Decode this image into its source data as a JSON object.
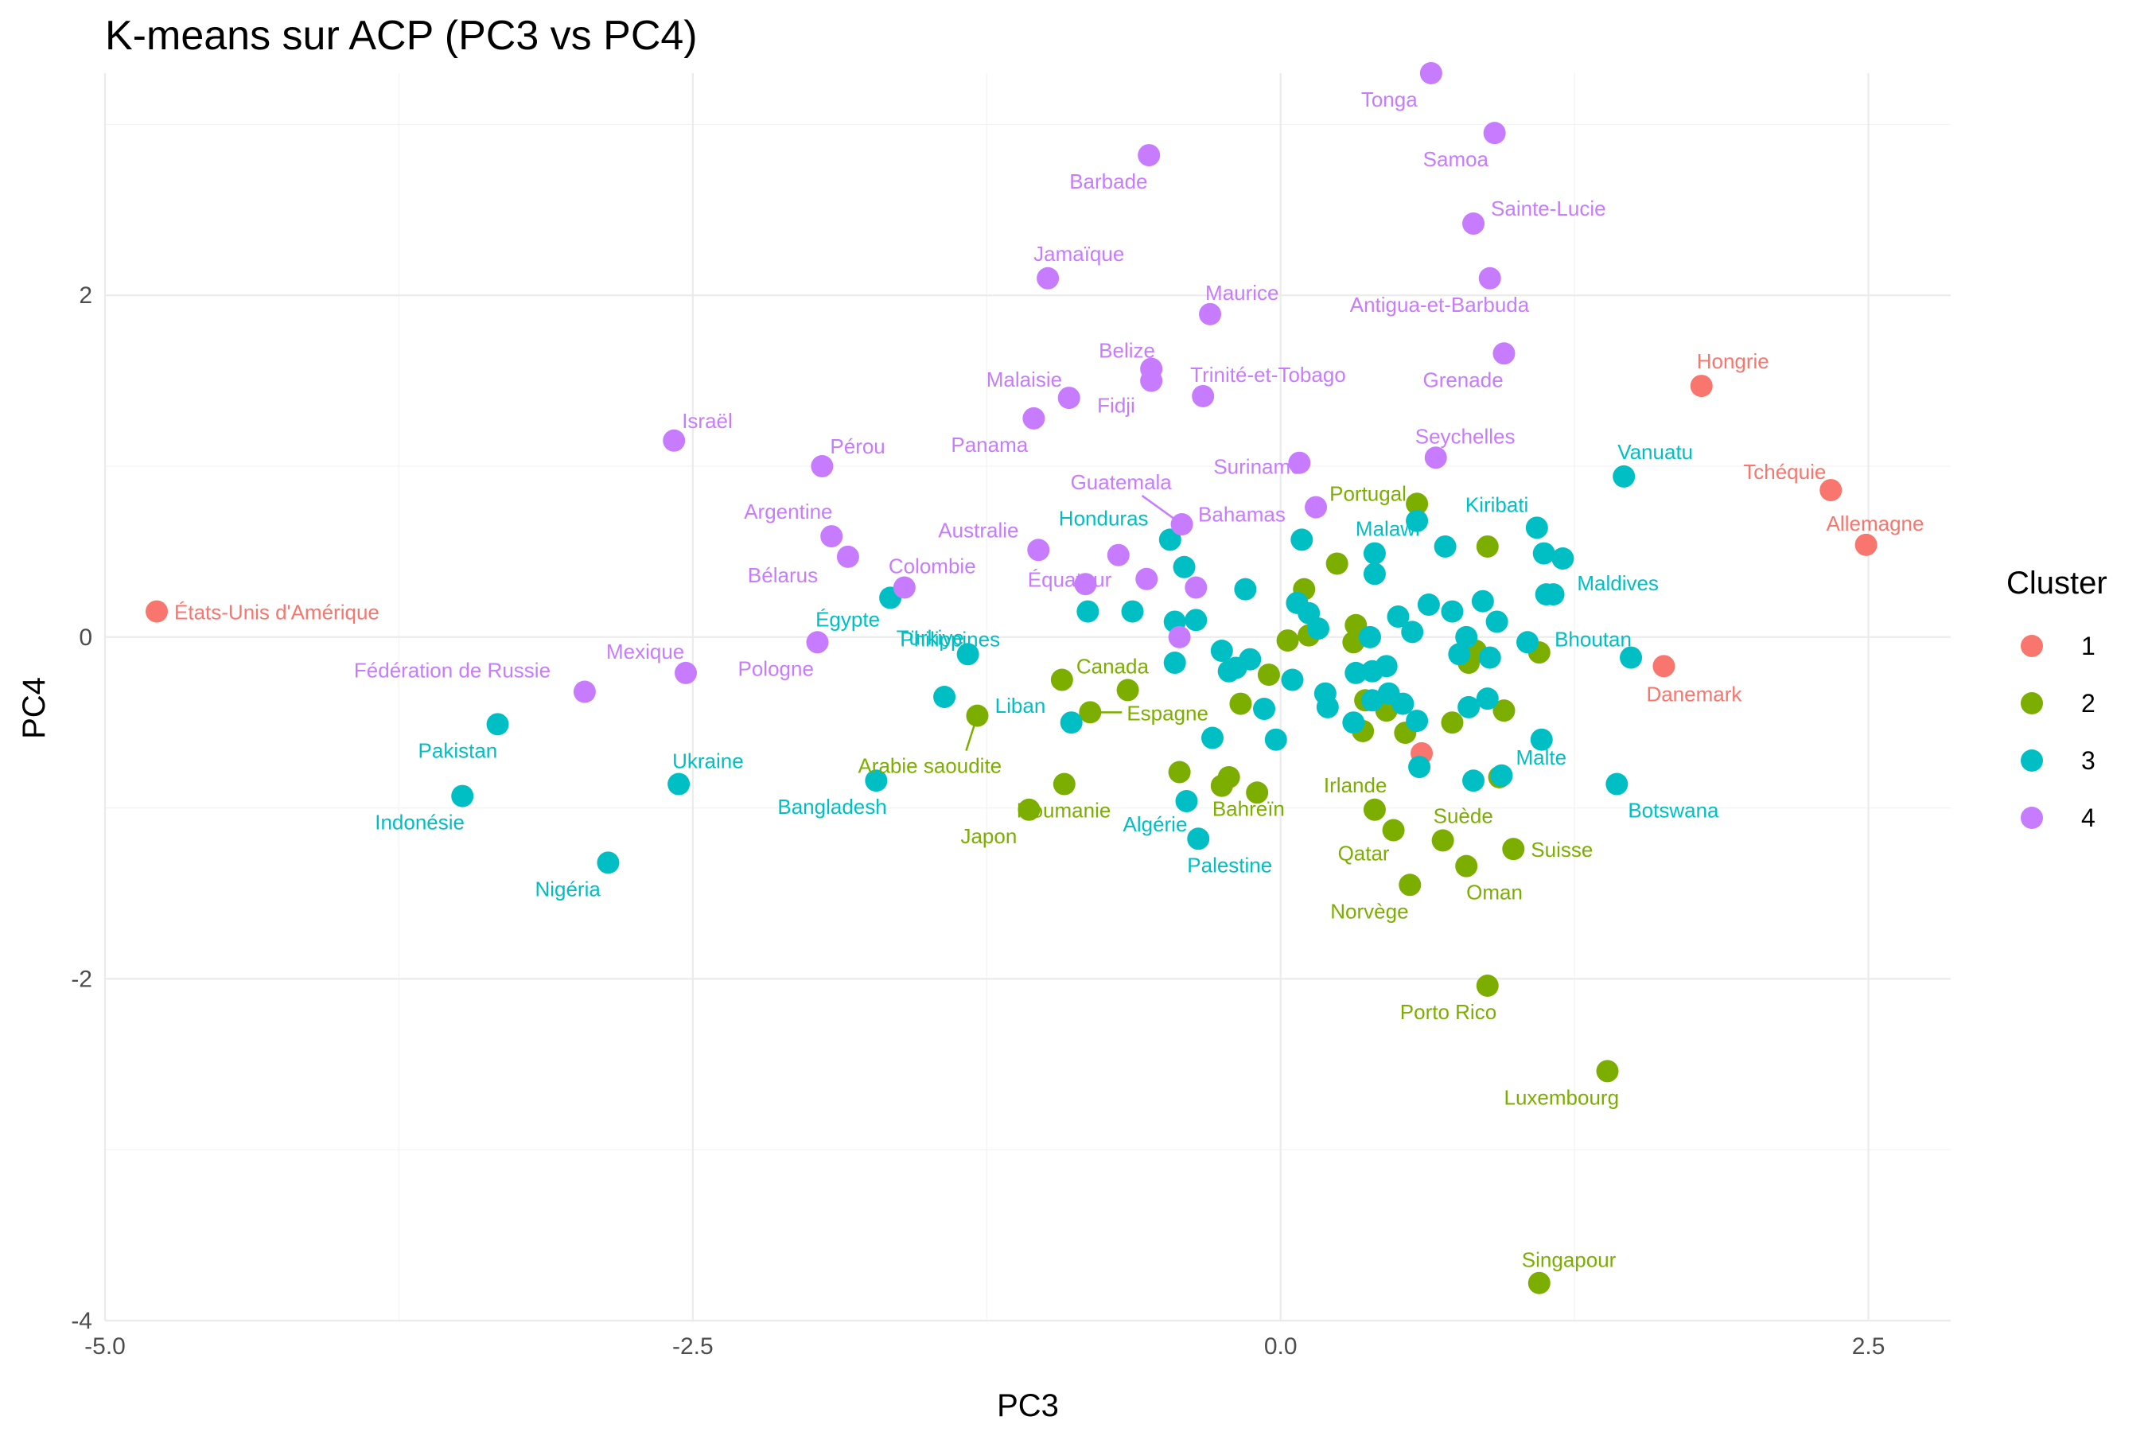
{
  "chart_data": {
    "type": "scatter",
    "title": "K-means sur ACP (PC3 vs PC4)",
    "xlabel": "PC3",
    "ylabel": "PC4",
    "xlim": [
      -5.0,
      2.85
    ],
    "ylim": [
      -4.0,
      3.3
    ],
    "x_ticks": [
      -5.0,
      -2.5,
      0.0,
      2.5
    ],
    "x_tick_labels": [
      "-5.0",
      "-2.5",
      "0.0",
      "2.5"
    ],
    "y_ticks": [
      -4,
      -2,
      0,
      2
    ],
    "y_tick_labels": [
      "-4",
      "-2",
      "0",
      "2"
    ],
    "grid": true,
    "legend": {
      "title": "Cluster",
      "position": "right"
    },
    "series": [
      {
        "name": "1",
        "color": "#F8766D",
        "points": [
          {
            "x": -4.78,
            "y": 0.15,
            "label": "États-Unis d'Amérique"
          },
          {
            "x": 1.79,
            "y": 1.47,
            "label": "Hongrie"
          },
          {
            "x": 2.34,
            "y": 0.86,
            "label": "Tchéquie"
          },
          {
            "x": 2.49,
            "y": 0.54,
            "label": "Allemagne"
          },
          {
            "x": 1.63,
            "y": -0.17,
            "label": "Danemark"
          },
          {
            "x": 0.6,
            "y": -0.68,
            "label": ""
          }
        ]
      },
      {
        "name": "2",
        "color": "#7CAE00",
        "points": [
          {
            "x": 0.58,
            "y": 0.78,
            "label": "Portugal"
          },
          {
            "x": -1.29,
            "y": -0.46,
            "label": "Arabie saoudite"
          },
          {
            "x": -0.93,
            "y": -0.25,
            "label": "Canada"
          },
          {
            "x": -0.81,
            "y": -0.44,
            "label": "Espagne"
          },
          {
            "x": -0.92,
            "y": -0.86,
            "label": "Roumanie"
          },
          {
            "x": -1.07,
            "y": -1.01,
            "label": "Japon"
          },
          {
            "x": -0.25,
            "y": -0.87,
            "label": "Bahreïn"
          },
          {
            "x": 0.4,
            "y": -1.01,
            "label": "Irlande"
          },
          {
            "x": 0.69,
            "y": -1.19,
            "label": "Suède"
          },
          {
            "x": 0.48,
            "y": -1.13,
            "label": "Qatar"
          },
          {
            "x": 0.99,
            "y": -1.24,
            "label": "Suisse"
          },
          {
            "x": 0.79,
            "y": -1.34,
            "label": "Oman"
          },
          {
            "x": 0.55,
            "y": -1.45,
            "label": "Norvège"
          },
          {
            "x": 0.88,
            "y": -2.04,
            "label": "Porto Rico"
          },
          {
            "x": 1.39,
            "y": -2.54,
            "label": "Luxembourg"
          },
          {
            "x": 1.1,
            "y": -3.78,
            "label": "Singapour"
          },
          {
            "x": 0.24,
            "y": 0.43,
            "label": ""
          },
          {
            "x": 0.1,
            "y": 0.28,
            "label": ""
          },
          {
            "x": 0.88,
            "y": 0.53,
            "label": ""
          },
          {
            "x": 0.32,
            "y": 0.07,
            "label": ""
          },
          {
            "x": 0.36,
            "y": -0.37,
            "label": ""
          },
          {
            "x": 0.35,
            "y": -0.55,
            "label": ""
          },
          {
            "x": 0.53,
            "y": -0.56,
            "label": ""
          },
          {
            "x": 0.73,
            "y": -0.5,
            "label": ""
          },
          {
            "x": 0.95,
            "y": -0.43,
            "label": ""
          },
          {
            "x": 0.8,
            "y": -0.15,
            "label": ""
          },
          {
            "x": 0.83,
            "y": -0.08,
            "label": ""
          },
          {
            "x": 1.1,
            "y": -0.09,
            "label": ""
          },
          {
            "x": 0.03,
            "y": -0.02,
            "label": ""
          },
          {
            "x": 0.12,
            "y": 0.01,
            "label": ""
          },
          {
            "x": -0.05,
            "y": -0.22,
            "label": ""
          },
          {
            "x": -0.17,
            "y": -0.39,
            "label": ""
          },
          {
            "x": 0.31,
            "y": -0.03,
            "label": ""
          },
          {
            "x": 0.45,
            "y": -0.43,
            "label": ""
          },
          {
            "x": -0.65,
            "y": -0.31,
            "label": ""
          },
          {
            "x": -0.43,
            "y": -0.79,
            "label": ""
          },
          {
            "x": -0.22,
            "y": -0.82,
            "label": ""
          },
          {
            "x": -0.1,
            "y": -0.91,
            "label": ""
          },
          {
            "x": 0.93,
            "y": -0.82,
            "label": ""
          }
        ]
      },
      {
        "name": "3",
        "color": "#00BFC4",
        "points": [
          {
            "x": 1.46,
            "y": 0.94,
            "label": "Vanuatu"
          },
          {
            "x": 1.09,
            "y": 0.64,
            "label": "Kiribati"
          },
          {
            "x": 1.2,
            "y": 0.46,
            "label": "Maldives"
          },
          {
            "x": 1.49,
            "y": -0.12,
            "label": "Bhoutan"
          },
          {
            "x": 1.43,
            "y": -0.86,
            "label": "Botswana"
          },
          {
            "x": 0.94,
            "y": -0.81,
            "label": "Malte"
          },
          {
            "x": 0.4,
            "y": 0.49,
            "label": "Malawi"
          },
          {
            "x": -0.47,
            "y": 0.57,
            "label": "Honduras"
          },
          {
            "x": -1.66,
            "y": 0.23,
            "label": "Égypte"
          },
          {
            "x": -0.82,
            "y": 0.15,
            "label": "Philippines"
          },
          {
            "x": -1.33,
            "y": -0.1,
            "label": "Türkiye"
          },
          {
            "x": -0.89,
            "y": -0.5,
            "label": "Liban"
          },
          {
            "x": -1.72,
            "y": -0.84,
            "label": "Bangladesh"
          },
          {
            "x": -0.4,
            "y": -0.96,
            "label": "Algérie"
          },
          {
            "x": -0.35,
            "y": -1.18,
            "label": "Palestine"
          },
          {
            "x": -3.33,
            "y": -0.51,
            "label": "Pakistan"
          },
          {
            "x": -2.56,
            "y": -0.86,
            "label": "Ukraine"
          },
          {
            "x": -3.48,
            "y": -0.93,
            "label": "Indonésie"
          },
          {
            "x": -2.86,
            "y": -1.32,
            "label": "Nigéria"
          },
          {
            "x": -1.43,
            "y": -0.35,
            "label": ""
          },
          {
            "x": -0.63,
            "y": 0.15,
            "label": ""
          },
          {
            "x": -0.45,
            "y": 0.09,
            "label": ""
          },
          {
            "x": -0.36,
            "y": 0.1,
            "label": ""
          },
          {
            "x": -0.41,
            "y": 0.41,
            "label": ""
          },
          {
            "x": -0.15,
            "y": 0.28,
            "label": ""
          },
          {
            "x": 0.09,
            "y": 0.57,
            "label": ""
          },
          {
            "x": 0.4,
            "y": 0.37,
            "label": ""
          },
          {
            "x": 0.58,
            "y": 0.68,
            "label": ""
          },
          {
            "x": 0.7,
            "y": 0.53,
            "label": ""
          },
          {
            "x": 1.12,
            "y": 0.49,
            "label": ""
          },
          {
            "x": 1.13,
            "y": 0.25,
            "label": ""
          },
          {
            "x": 1.16,
            "y": 0.25,
            "label": ""
          },
          {
            "x": 0.86,
            "y": 0.21,
            "label": ""
          },
          {
            "x": 0.92,
            "y": 0.09,
            "label": ""
          },
          {
            "x": 0.73,
            "y": 0.15,
            "label": ""
          },
          {
            "x": 0.63,
            "y": 0.19,
            "label": ""
          },
          {
            "x": 0.5,
            "y": 0.12,
            "label": ""
          },
          {
            "x": 0.56,
            "y": 0.03,
            "label": ""
          },
          {
            "x": 0.79,
            "y": 0.0,
            "label": ""
          },
          {
            "x": 1.05,
            "y": -0.03,
            "label": ""
          },
          {
            "x": 0.76,
            "y": -0.1,
            "label": ""
          },
          {
            "x": 0.45,
            "y": -0.17,
            "label": ""
          },
          {
            "x": 0.39,
            "y": -0.2,
            "label": ""
          },
          {
            "x": 0.32,
            "y": -0.21,
            "label": ""
          },
          {
            "x": 0.38,
            "y": 0.0,
            "label": ""
          },
          {
            "x": 0.12,
            "y": 0.14,
            "label": ""
          },
          {
            "x": 0.16,
            "y": 0.05,
            "label": ""
          },
          {
            "x": 0.07,
            "y": 0.2,
            "label": ""
          },
          {
            "x": -0.25,
            "y": -0.08,
            "label": ""
          },
          {
            "x": -0.22,
            "y": -0.2,
            "label": ""
          },
          {
            "x": -0.19,
            "y": -0.18,
            "label": ""
          },
          {
            "x": -0.13,
            "y": -0.13,
            "label": ""
          },
          {
            "x": -0.07,
            "y": -0.42,
            "label": ""
          },
          {
            "x": -0.02,
            "y": -0.6,
            "label": ""
          },
          {
            "x": 0.05,
            "y": -0.25,
            "label": ""
          },
          {
            "x": 0.19,
            "y": -0.33,
            "label": ""
          },
          {
            "x": 0.2,
            "y": -0.41,
            "label": ""
          },
          {
            "x": 0.31,
            "y": -0.5,
            "label": ""
          },
          {
            "x": 0.39,
            "y": -0.37,
            "label": ""
          },
          {
            "x": 0.46,
            "y": -0.33,
            "label": ""
          },
          {
            "x": 0.52,
            "y": -0.39,
            "label": ""
          },
          {
            "x": 0.58,
            "y": -0.49,
            "label": ""
          },
          {
            "x": 0.59,
            "y": -0.76,
            "label": ""
          },
          {
            "x": 0.8,
            "y": -0.41,
            "label": ""
          },
          {
            "x": 0.88,
            "y": -0.36,
            "label": ""
          },
          {
            "x": 1.11,
            "y": -0.6,
            "label": ""
          },
          {
            "x": 0.82,
            "y": -0.84,
            "label": ""
          },
          {
            "x": 0.89,
            "y": -0.12,
            "label": ""
          },
          {
            "x": -0.29,
            "y": -0.59,
            "label": ""
          },
          {
            "x": -0.45,
            "y": -0.15,
            "label": ""
          }
        ]
      },
      {
        "name": "4",
        "color": "#C77CFF",
        "points": [
          {
            "x": 0.64,
            "y": 3.3,
            "label": "Tonga"
          },
          {
            "x": 0.91,
            "y": 2.95,
            "label": "Samoa"
          },
          {
            "x": -0.56,
            "y": 2.82,
            "label": "Barbade"
          },
          {
            "x": 0.82,
            "y": 2.42,
            "label": "Sainte-Lucie"
          },
          {
            "x": -0.99,
            "y": 2.1,
            "label": "Jamaïque"
          },
          {
            "x": 0.89,
            "y": 2.1,
            "label": "Antigua-et-Barbuda"
          },
          {
            "x": -0.3,
            "y": 1.89,
            "label": "Maurice"
          },
          {
            "x": 0.95,
            "y": 1.66,
            "label": "Grenade"
          },
          {
            "x": -0.55,
            "y": 1.57,
            "label": "Belize"
          },
          {
            "x": -0.55,
            "y": 1.5,
            "label": "Fidji"
          },
          {
            "x": -0.9,
            "y": 1.4,
            "label": "Malaisie"
          },
          {
            "x": -0.33,
            "y": 1.41,
            "label": "Trinité-et-Tobago"
          },
          {
            "x": -1.05,
            "y": 1.28,
            "label": "Panama"
          },
          {
            "x": -2.58,
            "y": 1.15,
            "label": "Israël"
          },
          {
            "x": -1.95,
            "y": 1.0,
            "label": "Pérou"
          },
          {
            "x": 0.08,
            "y": 1.02,
            "label": "Suriname"
          },
          {
            "x": 0.66,
            "y": 1.05,
            "label": "Seychelles"
          },
          {
            "x": -0.42,
            "y": 0.66,
            "label": "Guatemala"
          },
          {
            "x": 0.15,
            "y": 0.76,
            "label": "Bahamas"
          },
          {
            "x": -1.91,
            "y": 0.59,
            "label": "Argentine"
          },
          {
            "x": -1.03,
            "y": 0.51,
            "label": "Australie"
          },
          {
            "x": -1.84,
            "y": 0.47,
            "label": "Bélarus"
          },
          {
            "x": -1.6,
            "y": 0.29,
            "label": "Colombie"
          },
          {
            "x": -0.69,
            "y": 0.48,
            "label": "Équateur"
          },
          {
            "x": -2.53,
            "y": -0.21,
            "label": "Mexique"
          },
          {
            "x": -1.97,
            "y": -0.03,
            "label": "Pologne"
          },
          {
            "x": -2.96,
            "y": -0.32,
            "label": "Fédération de Russie"
          },
          {
            "x": -0.83,
            "y": 0.31,
            "label": ""
          },
          {
            "x": -0.57,
            "y": 0.34,
            "label": ""
          },
          {
            "x": -0.36,
            "y": 0.29,
            "label": ""
          },
          {
            "x": -0.43,
            "y": 0.0,
            "label": ""
          }
        ]
      }
    ]
  }
}
